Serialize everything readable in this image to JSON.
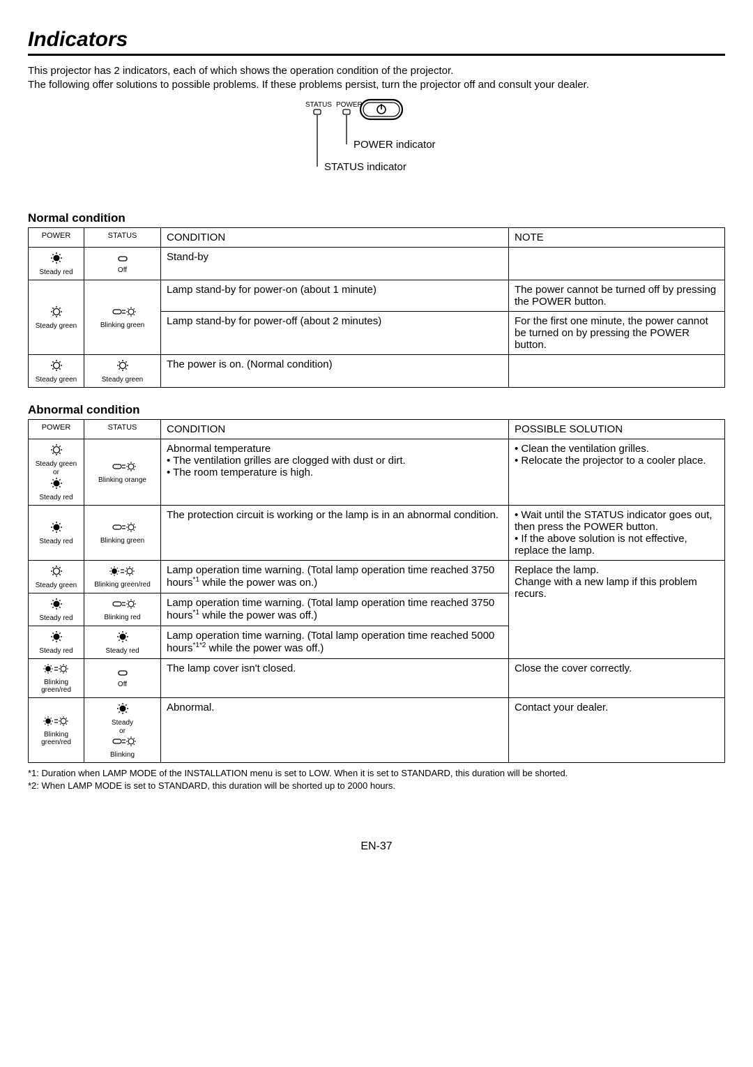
{
  "title": "Indicators",
  "intro": "This projector has 2 indicators, each of which shows the operation condition of the projector.\nThe following offer solutions to possible problems. If these problems persist, turn the projector off and consult your dealer.",
  "diagram": {
    "status_label": "STATUS",
    "power_label": "POWER",
    "power_indicator": "POWER indicator",
    "status_indicator": "STATUS indicator"
  },
  "normal_heading": "Normal condition",
  "abnormal_heading": "Abnormal condition",
  "headers": {
    "power": "POWER",
    "status": "STATUS",
    "condition": "CONDITION",
    "note": "NOTE",
    "solution": "POSSIBLE SOLUTION"
  },
  "icons": {
    "steady_red": "Steady red",
    "steady_green": "Steady green",
    "off": "Off",
    "blinking_green": "Blinking green",
    "blinking_orange": "Blinking orange",
    "blinking_red": "Blinking red",
    "blinking_green_red": "Blinking green/red",
    "steady": "Steady",
    "blinking": "Blinking",
    "or": "or"
  },
  "normal_rows": [
    {
      "power": "steady_red",
      "status": "off",
      "condition": "Stand-by",
      "note": ""
    },
    {
      "power": "steady_green",
      "status": "blinking_green",
      "condition": "Lamp stand-by for power-on (about 1 minute)",
      "note": "The power cannot be turned off by pressing the POWER button."
    },
    {
      "condition": "Lamp stand-by for power-off (about 2 minutes)",
      "note": "For the first one minute, the power cannot be turned on by pressing the POWER button."
    },
    {
      "power": "steady_green",
      "status": "steady_green",
      "condition": "The power is on. (Normal condition)",
      "note": ""
    }
  ],
  "abnormal_rows": [
    {
      "power_dual": true,
      "status": "blinking_orange",
      "condition_head": "Abnormal temperature",
      "condition_bullets": [
        "The ventilation grilles are clogged with dust or dirt.",
        "The room temperature is high."
      ],
      "solution_bullets": [
        "Clean the ventilation grilles.",
        "Relocate the projector to a cooler place."
      ]
    },
    {
      "power": "steady_red",
      "status": "blinking_green",
      "condition": "The protection circuit is working or the lamp is in an abnormal condition.",
      "solution_bullets": [
        "Wait until the STATUS indicator goes out, then press the POWER button.",
        "If the above solution is not effective, replace the lamp."
      ]
    },
    {
      "power": "steady_green",
      "status": "blinking_green_red",
      "condition_html": "Lamp operation time warning. (Total lamp operation time reached 3750 hours<sup>*1</sup> while the power was on.)",
      "solution": "Replace the lamp.\nChange with a new lamp if this problem recurs."
    },
    {
      "power": "steady_red",
      "status": "blinking_red",
      "condition_html": "Lamp operation time warning. (Total lamp operation time reached 3750 hours<sup>*1</sup> while the power was off.)"
    },
    {
      "power": "steady_red",
      "status": "steady_red",
      "condition_html": "Lamp operation time warning. (Total lamp operation time reached 5000 hours<sup>*1*2</sup> while the power was off.)"
    },
    {
      "power": "blinking_green_red",
      "status": "off",
      "condition": "The lamp cover isn't closed.",
      "solution": "Close the cover correctly."
    },
    {
      "power": "blinking_green_red",
      "status_dual": true,
      "condition": "Abnormal.",
      "solution": "Contact your dealer."
    }
  ],
  "footnotes": [
    "*1: Duration when LAMP MODE of the INSTALLATION menu is set to LOW. When it is set to STANDARD, this duration will be shorted.",
    "*2: When LAMP MODE is set to STANDARD, this duration will be shorted up to 2000 hours."
  ],
  "page_num": "EN-37"
}
